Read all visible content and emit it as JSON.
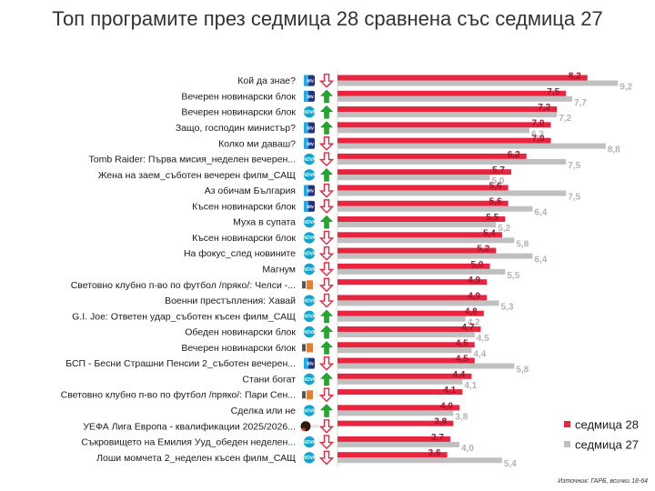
{
  "chart_data": {
    "type": "bar",
    "orientation": "horizontal",
    "title": "Топ програмите през седмица 28 сравнена със седмица 27",
    "xlim": [
      0,
      10
    ],
    "grid": false,
    "legend_position": "bottom-right",
    "series": [
      {
        "name": "седмица 28",
        "color": "#e8243f"
      },
      {
        "name": "седмица 27",
        "color": "#c0c0c0"
      }
    ],
    "rows": [
      {
        "label": "Кой да знае?",
        "channel": "btv",
        "trend": "down",
        "w28": "8,2",
        "w27": "9,2",
        "v28": 8.2,
        "v27": 9.2
      },
      {
        "label": "Вечерен новинарски блок",
        "channel": "btv",
        "trend": "up",
        "w28": "7,5",
        "w27": "7,7",
        "v28": 7.5,
        "v27": 7.7
      },
      {
        "label": "Вечерен новинарски блок",
        "channel": "nova",
        "trend": "up",
        "w28": "7,2",
        "w27": "7,2",
        "v28": 7.2,
        "v27": 7.2
      },
      {
        "label": "Защо, господин министър?",
        "channel": "btv",
        "trend": "up",
        "w28": "7,0",
        "w27": "6,3",
        "v28": 7.0,
        "v27": 6.3
      },
      {
        "label": "Колко ми даваш?",
        "channel": "btv",
        "trend": "down",
        "w28": "7,0",
        "w27": "8,8",
        "v28": 7.0,
        "v27": 8.8
      },
      {
        "label": "Tomb Raider: Първа мисия_неделен вечерен...",
        "channel": "nova",
        "trend": "down",
        "w28": "6,2",
        "w27": "7,5",
        "v28": 6.2,
        "v27": 7.5
      },
      {
        "label": "Жена на заем_съботен вечерен филм_САЩ",
        "channel": "nova",
        "trend": "up",
        "w28": "5,7",
        "w27": "5,0",
        "v28": 5.7,
        "v27": 5.0
      },
      {
        "label": "Аз обичам България",
        "channel": "btv",
        "trend": "down",
        "w28": "5,6",
        "w27": "7,5",
        "v28": 5.6,
        "v27": 7.5
      },
      {
        "label": "Късен новинарски блок",
        "channel": "btv",
        "trend": "down",
        "w28": "5,6",
        "w27": "6,4",
        "v28": 5.6,
        "v27": 6.4
      },
      {
        "label": "Муха в супата",
        "channel": "nova",
        "trend": "up",
        "w28": "5,5",
        "w27": "5,2",
        "v28": 5.5,
        "v27": 5.2
      },
      {
        "label": "Късен новинарски блок",
        "channel": "nova",
        "trend": "down",
        "w28": "5,4",
        "w27": "5,8",
        "v28": 5.4,
        "v27": 5.8
      },
      {
        "label": "На фокус_след новините",
        "channel": "nova",
        "trend": "down",
        "w28": "5,2",
        "w27": "6,4",
        "v28": 5.2,
        "v27": 6.4
      },
      {
        "label": "Магнум",
        "channel": "nova",
        "trend": "down",
        "w28": "5,0",
        "w27": "5,5",
        "v28": 5.0,
        "v27": 5.5
      },
      {
        "label": "Световно клубно п-во по футбол /пряко/: Челси -...",
        "channel": "nova_news",
        "trend": "down",
        "w28": "4,9",
        "w27": "",
        "v28": 4.9,
        "v27": null
      },
      {
        "label": "Военни престъпления: Хавай",
        "channel": "nova",
        "trend": "down",
        "w28": "4,9",
        "w27": "5,3",
        "v28": 4.9,
        "v27": 5.3
      },
      {
        "label": "G.I. Joe: Ответен удар_съботен късен филм_САЩ",
        "channel": "nova",
        "trend": "up",
        "w28": "4,8",
        "w27": "4,2",
        "v28": 4.8,
        "v27": 4.2
      },
      {
        "label": "Обеден новинарски блок",
        "channel": "nova",
        "trend": "up",
        "w28": "4,7",
        "w27": "4,5",
        "v28": 4.7,
        "v27": 4.5
      },
      {
        "label": "Вечерен новинарски блок",
        "channel": "nova_news",
        "trend": "up",
        "w28": "4,5",
        "w27": "4,4",
        "v28": 4.5,
        "v27": 4.4
      },
      {
        "label": "БСП - Бесни Страшни Пенсии 2_съботен вечерен...",
        "channel": "btv",
        "trend": "down",
        "w28": "4,5",
        "w27": "5,8",
        "v28": 4.5,
        "v27": 5.8
      },
      {
        "label": "Стани богат",
        "channel": "nova",
        "trend": "up",
        "w28": "4,4",
        "w27": "4,1",
        "v28": 4.4,
        "v27": 4.1
      },
      {
        "label": "Световно клубно п-во по футбол /пряко/: Пари Сен...",
        "channel": "nova_news",
        "trend": "down",
        "w28": "4,1",
        "w27": "",
        "v28": 4.1,
        "v27": null
      },
      {
        "label": "Сделка или не",
        "channel": "nova",
        "trend": "up",
        "w28": "4,0",
        "w27": "3,8",
        "v28": 4.0,
        "v27": 3.8
      },
      {
        "label": "УЕФА Лига Европа - квалификации 2025/2026...",
        "channel": "diema",
        "trend": "down",
        "w28": "3,8",
        "w27": "",
        "v28": 3.8,
        "v27": null
      },
      {
        "label": "Съкровището на Емилия Ууд_обеден неделен...",
        "channel": "nova",
        "trend": "down",
        "w28": "3,7",
        "w27": "4,0",
        "v28": 3.7,
        "v27": 4.0
      },
      {
        "label": "Лоши момчета 2_неделен късен филм_САЩ",
        "channel": "nova",
        "trend": "down",
        "w28": "3,6",
        "w27": "5,4",
        "v28": 3.6,
        "v27": 5.4
      }
    ],
    "source": "Източник: ГАРБ, всички 18-64"
  }
}
